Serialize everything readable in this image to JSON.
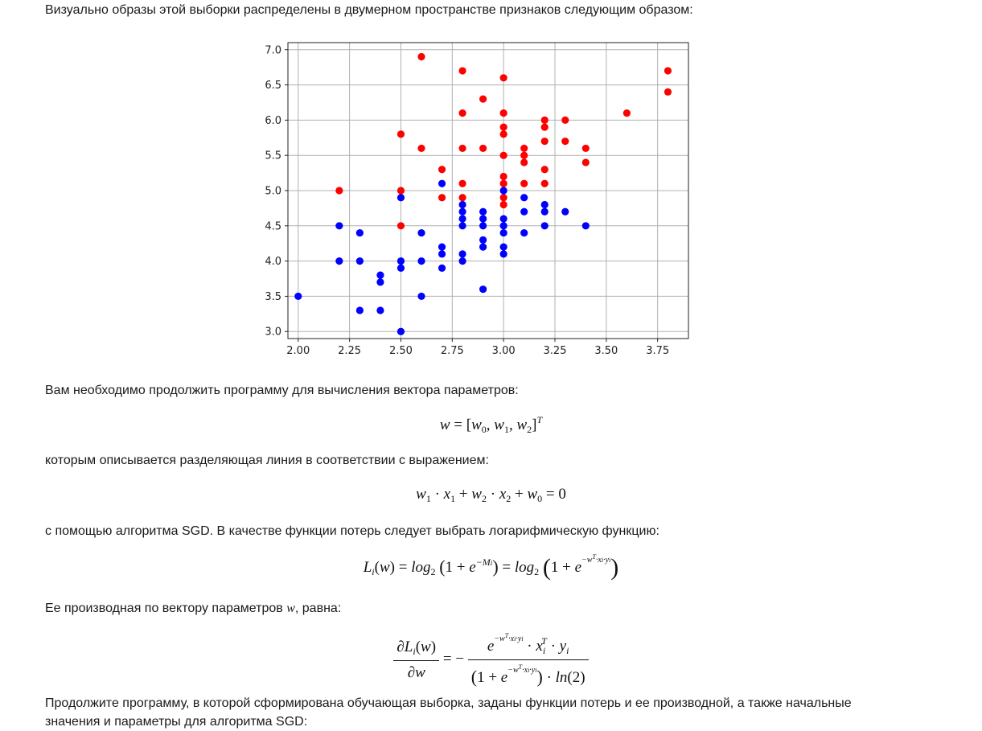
{
  "text": {
    "intro": "Визуально образы этой выборки распределены в двумерном пространстве признаков следующим образом:",
    "continue_program": "Вам необходимо продолжить программу для вычисления вектора параметров:",
    "described_line": "которым описывается разделяющая линия в соответствии с выражением:",
    "sgd_loss": "с помощью алгоритма SGD. В качестве функции потерь следует выбрать логарифмическую функцию:",
    "derivative_prefix": "Ее производная по вектору параметров ",
    "derivative_var": "w",
    "derivative_suffix": ", равна:",
    "last_line1": "Продолжите программу, в которой сформирована обучающая выборка, заданы функции потерь и ее производной, а также начальные",
    "last_line2": "значения и параметры для алгоритма SGD:"
  },
  "colors": {
    "class_red": "#ff0000",
    "class_blue": "#0000ff",
    "grid": "#b0b0b0"
  },
  "chart_data": {
    "type": "scatter",
    "xlim": [
      1.95,
      3.9
    ],
    "ylim": [
      2.9,
      7.1
    ],
    "xticks": [
      2.0,
      2.25,
      2.5,
      2.75,
      3.0,
      3.25,
      3.5,
      3.75
    ],
    "xtick_labels": [
      "2.00",
      "2.25",
      "2.50",
      "2.75",
      "3.00",
      "3.25",
      "3.50",
      "3.75"
    ],
    "yticks": [
      3.0,
      3.5,
      4.0,
      4.5,
      5.0,
      5.5,
      6.0,
      6.5,
      7.0
    ],
    "ytick_labels": [
      "3.0",
      "3.5",
      "4.0",
      "4.5",
      "5.0",
      "5.5",
      "6.0",
      "6.5",
      "7.0"
    ],
    "grid": true,
    "series": [
      {
        "color": "#ff0000",
        "points": [
          [
            2.2,
            5.0
          ],
          [
            2.5,
            5.8
          ],
          [
            2.5,
            5.0
          ],
          [
            2.5,
            4.5
          ],
          [
            2.6,
            6.9
          ],
          [
            2.6,
            5.6
          ],
          [
            2.7,
            5.3
          ],
          [
            2.7,
            4.9
          ],
          [
            2.8,
            6.7
          ],
          [
            2.8,
            6.1
          ],
          [
            2.8,
            5.6
          ],
          [
            2.8,
            5.1
          ],
          [
            2.8,
            4.9
          ],
          [
            2.9,
            6.3
          ],
          [
            2.9,
            5.6
          ],
          [
            3.0,
            6.6
          ],
          [
            3.0,
            6.1
          ],
          [
            3.0,
            5.9
          ],
          [
            3.0,
            5.8
          ],
          [
            3.0,
            5.5
          ],
          [
            3.0,
            5.2
          ],
          [
            3.0,
            5.1
          ],
          [
            3.0,
            4.9
          ],
          [
            3.0,
            4.8
          ],
          [
            3.1,
            5.6
          ],
          [
            3.1,
            5.5
          ],
          [
            3.1,
            5.4
          ],
          [
            3.1,
            5.1
          ],
          [
            3.2,
            6.0
          ],
          [
            3.2,
            5.9
          ],
          [
            3.2,
            5.7
          ],
          [
            3.2,
            5.3
          ],
          [
            3.2,
            5.1
          ],
          [
            3.3,
            6.0
          ],
          [
            3.3,
            5.7
          ],
          [
            3.4,
            5.6
          ],
          [
            3.4,
            5.4
          ],
          [
            3.6,
            6.1
          ],
          [
            3.8,
            6.7
          ],
          [
            3.8,
            6.4
          ]
        ]
      },
      {
        "color": "#0000ff",
        "points": [
          [
            2.0,
            3.5
          ],
          [
            2.2,
            4.5
          ],
          [
            2.2,
            4.0
          ],
          [
            2.3,
            4.4
          ],
          [
            2.3,
            4.0
          ],
          [
            2.3,
            3.3
          ],
          [
            2.4,
            3.8
          ],
          [
            2.4,
            3.7
          ],
          [
            2.4,
            3.3
          ],
          [
            2.5,
            4.9
          ],
          [
            2.5,
            4.0
          ],
          [
            2.5,
            3.9
          ],
          [
            2.5,
            3.0
          ],
          [
            2.6,
            4.4
          ],
          [
            2.6,
            4.0
          ],
          [
            2.6,
            3.5
          ],
          [
            2.7,
            5.1
          ],
          [
            2.7,
            4.2
          ],
          [
            2.7,
            4.1
          ],
          [
            2.7,
            3.9
          ],
          [
            2.8,
            4.8
          ],
          [
            2.8,
            4.7
          ],
          [
            2.8,
            4.6
          ],
          [
            2.8,
            4.5
          ],
          [
            2.8,
            4.1
          ],
          [
            2.8,
            4.0
          ],
          [
            2.9,
            4.7
          ],
          [
            2.9,
            4.6
          ],
          [
            2.9,
            4.5
          ],
          [
            2.9,
            4.3
          ],
          [
            2.9,
            4.2
          ],
          [
            2.9,
            3.6
          ],
          [
            3.0,
            5.0
          ],
          [
            3.0,
            4.6
          ],
          [
            3.0,
            4.5
          ],
          [
            3.0,
            4.4
          ],
          [
            3.0,
            4.2
          ],
          [
            3.0,
            4.1
          ],
          [
            3.1,
            4.9
          ],
          [
            3.1,
            4.7
          ],
          [
            3.1,
            4.4
          ],
          [
            3.2,
            4.8
          ],
          [
            3.2,
            4.7
          ],
          [
            3.2,
            4.5
          ],
          [
            3.3,
            4.7
          ],
          [
            3.4,
            4.5
          ]
        ]
      }
    ]
  }
}
